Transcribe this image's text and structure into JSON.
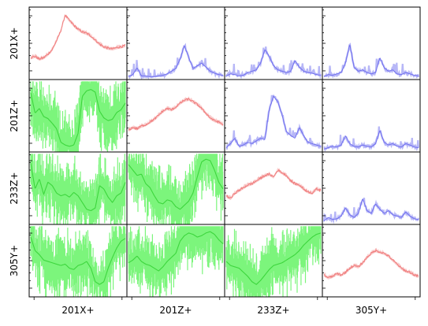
{
  "chart_data": {
    "type": "line",
    "title": "",
    "layout": "4x4 pairs matrix (diagonal: single-sensor spectrum, upper: cross-spectrum, lower: coherence/phase)",
    "channels": [
      "201X+",
      "201Z+",
      "233Z+",
      "305Y+"
    ],
    "y_scale": "log",
    "grid": false,
    "legend": "none",
    "colors": {
      "diagonal": "#f08080",
      "diagonal_band": "#f6b3b3",
      "upper": "#7070ee",
      "upper_band": "#b7b7f7",
      "lower": "#3dd63d",
      "lower_band": "#7cf57c"
    },
    "panels": [
      {
        "row": "201X+",
        "col": "201X+",
        "kind": "diagonal",
        "y": [
          0.3,
          0.32,
          0.28,
          0.3,
          0.35,
          0.42,
          0.55,
          0.7,
          0.93,
          0.85,
          0.78,
          0.72,
          0.68,
          0.66,
          0.62,
          0.56,
          0.5,
          0.46,
          0.44,
          0.43,
          0.45,
          0.46,
          0.48
        ]
      },
      {
        "row": "201X+",
        "col": "201Z+",
        "kind": "upper",
        "y": [
          0.02,
          0.05,
          0.15,
          0.03,
          0.03,
          0.02,
          0.02,
          0.03,
          0.04,
          0.06,
          0.1,
          0.14,
          0.28,
          0.48,
          0.3,
          0.14,
          0.18,
          0.22,
          0.16,
          0.1,
          0.07,
          0.05,
          0.04
        ]
      },
      {
        "row": "201X+",
        "col": "233Z+",
        "kind": "upper",
        "y": [
          0.03,
          0.06,
          0.05,
          0.03,
          0.04,
          0.08,
          0.1,
          0.12,
          0.22,
          0.42,
          0.32,
          0.18,
          0.12,
          0.1,
          0.08,
          0.1,
          0.26,
          0.16,
          0.1,
          0.08,
          0.07,
          0.05,
          0.04
        ]
      },
      {
        "row": "201X+",
        "col": "305Y+",
        "kind": "upper",
        "y": [
          0.02,
          0.05,
          0.04,
          0.06,
          0.08,
          0.22,
          0.5,
          0.16,
          0.1,
          0.12,
          0.08,
          0.06,
          0.08,
          0.3,
          0.15,
          0.1,
          0.12,
          0.06,
          0.05,
          0.08,
          0.06,
          0.04,
          0.03
        ]
      },
      {
        "row": "201Z+",
        "col": "201X+",
        "kind": "lower",
        "y": [
          0.85,
          0.55,
          0.62,
          0.5,
          0.47,
          0.4,
          0.32,
          0.12,
          0.08,
          0.06,
          0.08,
          0.25,
          0.8,
          0.88,
          0.9,
          0.86,
          0.58,
          0.48,
          0.44,
          0.46,
          0.56,
          0.6,
          0.7
        ]
      },
      {
        "row": "201Z+",
        "col": "201Z+",
        "kind": "diagonal",
        "y": [
          0.3,
          0.34,
          0.32,
          0.36,
          0.38,
          0.42,
          0.46,
          0.52,
          0.58,
          0.62,
          0.6,
          0.64,
          0.7,
          0.74,
          0.76,
          0.72,
          0.68,
          0.62,
          0.55,
          0.48,
          0.44,
          0.42,
          0.38
        ]
      },
      {
        "row": "201Z+",
        "col": "233Z+",
        "kind": "upper",
        "y": [
          0.04,
          0.1,
          0.18,
          0.06,
          0.08,
          0.12,
          0.1,
          0.14,
          0.18,
          0.16,
          0.6,
          0.8,
          0.72,
          0.52,
          0.28,
          0.22,
          0.18,
          0.34,
          0.22,
          0.12,
          0.1,
          0.08,
          0.06
        ]
      },
      {
        "row": "201Z+",
        "col": "305Y+",
        "kind": "upper",
        "y": [
          0.02,
          0.04,
          0.06,
          0.05,
          0.08,
          0.22,
          0.1,
          0.06,
          0.05,
          0.08,
          0.06,
          0.05,
          0.1,
          0.3,
          0.12,
          0.08,
          0.1,
          0.06,
          0.05,
          0.1,
          0.08,
          0.05,
          0.04
        ]
      },
      {
        "row": "233Z+",
        "col": "201X+",
        "kind": "lower",
        "y": [
          0.88,
          0.5,
          0.65,
          0.42,
          0.6,
          0.55,
          0.44,
          0.4,
          0.42,
          0.38,
          0.45,
          0.4,
          0.3,
          0.2,
          0.18,
          0.22,
          0.55,
          0.5,
          0.38,
          0.3,
          0.4,
          0.44,
          0.6
        ]
      },
      {
        "row": "233Z+",
        "col": "201Z+",
        "kind": "lower",
        "y": [
          0.86,
          0.78,
          0.7,
          0.72,
          0.58,
          0.52,
          0.4,
          0.3,
          0.28,
          0.34,
          0.32,
          0.24,
          0.2,
          0.26,
          0.32,
          0.44,
          0.68,
          0.9,
          0.94,
          0.92,
          0.78,
          0.6,
          0.5
        ]
      },
      {
        "row": "233Z+",
        "col": "233Z+",
        "kind": "diagonal",
        "y": [
          0.4,
          0.36,
          0.44,
          0.48,
          0.52,
          0.56,
          0.58,
          0.62,
          0.66,
          0.7,
          0.72,
          0.68,
          0.78,
          0.74,
          0.7,
          0.62,
          0.58,
          0.56,
          0.5,
          0.46,
          0.44,
          0.5,
          0.48
        ]
      },
      {
        "row": "233Z+",
        "col": "305Y+",
        "kind": "upper",
        "y": [
          0.03,
          0.08,
          0.05,
          0.06,
          0.1,
          0.22,
          0.12,
          0.08,
          0.14,
          0.36,
          0.18,
          0.14,
          0.28,
          0.2,
          0.14,
          0.18,
          0.12,
          0.1,
          0.08,
          0.16,
          0.1,
          0.06,
          0.05
        ]
      },
      {
        "row": "305Y+",
        "col": "201X+",
        "kind": "lower",
        "y": [
          0.86,
          0.66,
          0.6,
          0.52,
          0.5,
          0.48,
          0.46,
          0.44,
          0.46,
          0.4,
          0.38,
          0.44,
          0.46,
          0.5,
          0.4,
          0.2,
          0.16,
          0.2,
          0.4,
          0.56,
          0.7,
          0.8,
          0.84
        ]
      },
      {
        "row": "305Y+",
        "col": "201Z+",
        "kind": "lower",
        "y": [
          0.48,
          0.52,
          0.58,
          0.5,
          0.46,
          0.44,
          0.4,
          0.36,
          0.42,
          0.5,
          0.56,
          0.62,
          0.8,
          0.88,
          0.92,
          0.9,
          0.86,
          0.88,
          0.92,
          0.94,
          0.9,
          0.82,
          0.76
        ]
      },
      {
        "row": "305Y+",
        "col": "233Z+",
        "kind": "lower",
        "y": [
          0.5,
          0.44,
          0.42,
          0.4,
          0.34,
          0.28,
          0.2,
          0.16,
          0.22,
          0.3,
          0.38,
          0.44,
          0.46,
          0.48,
          0.52,
          0.56,
          0.6,
          0.66,
          0.74,
          0.8,
          0.86,
          0.9,
          0.92
        ]
      },
      {
        "row": "305Y+",
        "col": "305Y+",
        "kind": "diagonal",
        "y": [
          0.3,
          0.26,
          0.28,
          0.32,
          0.3,
          0.34,
          0.4,
          0.44,
          0.42,
          0.48,
          0.56,
          0.62,
          0.66,
          0.64,
          0.62,
          0.58,
          0.52,
          0.46,
          0.4,
          0.36,
          0.34,
          0.3,
          0.28
        ]
      }
    ]
  }
}
